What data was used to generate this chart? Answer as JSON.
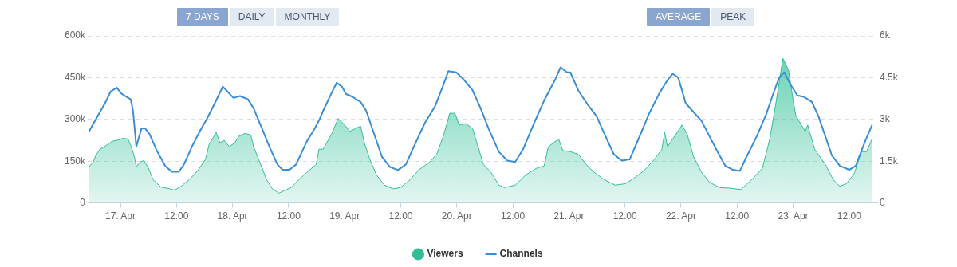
{
  "chart_data": {
    "type": "area",
    "annotations": [
      "7 DAYS",
      "DAILY",
      "MONTHLY",
      "AVERAGE",
      "PEAK"
    ],
    "legend": "bottom",
    "grid": "y",
    "marker": "none",
    "xlim": [
      "--04-16T17:00",
      "--04-23T18:00"
    ],
    "xticks": [
      {
        "value": "--04-17",
        "label": "17. Apr"
      },
      {
        "value": "--04-17T12:00",
        "label": "12:00"
      },
      {
        "value": "--04-18",
        "label": "18. Apr"
      },
      {
        "value": "--04-18T12:00",
        "label": "12:00"
      },
      {
        "value": "--04-19",
        "label": "19. Apr"
      },
      {
        "value": "--04-19T12:00",
        "label": "12:00"
      },
      {
        "value": "--04-20",
        "label": "20. Apr"
      },
      {
        "value": "--04-20T12:00",
        "label": "12:00"
      },
      {
        "value": "--04-21",
        "label": "21. Apr"
      },
      {
        "value": "--04-21T12:00",
        "label": "12:00"
      },
      {
        "value": "--04-22",
        "label": "22. Apr"
      },
      {
        "value": "--04-22T12:00",
        "label": "12:00"
      },
      {
        "value": "--04-23",
        "label": "23. Apr"
      },
      {
        "value": "--04-23T12:00",
        "label": "12:00"
      }
    ],
    "ylim": [
      0,
      600000
    ],
    "yticks": [
      0,
      {
        "value": 150000,
        "label": "150k"
      },
      {
        "value": 300000,
        "label": "300k"
      },
      {
        "value": 450000,
        "label": "450k"
      },
      {
        "value": 600000,
        "label": "600k"
      }
    ],
    "y2lim": [
      0,
      6000
    ],
    "y2ticks": [
      0,
      {
        "value": 1500,
        "label": "1.5k"
      },
      {
        "value": 3000,
        "label": "3k"
      },
      {
        "value": 4500,
        "label": "4.5k"
      },
      {
        "value": 6000,
        "label": "6k"
      }
    ],
    "series": [
      {
        "name": "Viewers",
        "color": "#2fbf97",
        "x": [
          "--04-16T17:18",
          "--04-16T18:12",
          "--04-16T18:42",
          "--04-16T19:36",
          "--04-16T21:00",
          "--04-16T22:12",
          "--04-16T23:18",
          "--04-17T00:30",
          "--04-17T01:36",
          "--04-17T02:12",
          "--04-17T03:00",
          "--04-17T03:24",
          "--04-17T04:12",
          "--04-17T05:00",
          "--04-17T05:54",
          "--04-17T07:00",
          "--04-17T08:42",
          "--04-17T10:30",
          "--04-17T11:36",
          "--04-17T13:00",
          "--04-17T14:42",
          "--04-17T16:30",
          "--04-17T18:12",
          "--04-17T19:00",
          "--04-17T20:30",
          "--04-17T21:18",
          "--04-17T22:12",
          "--04-17T23:18",
          "--04-18T00:30",
          "--04-18T01:18",
          "--04-18T02:42",
          "--04-18T03:54",
          "--04-18T04:30",
          "--04-18T05:36",
          "--04-18T07:18",
          "--04-18T08:30",
          "--04-18T09:54",
          "--04-18T11:18",
          "--04-18T12:30",
          "--04-18T14:12",
          "--04-18T15:54",
          "--04-18T17:54",
          "--04-18T18:30",
          "--04-18T19:24",
          "--04-18T21:12",
          "--04-18T21:42",
          "--04-18T22:36",
          "--04-19T00:00",
          "--04-19T01:06",
          "--04-19T02:18",
          "--04-19T03:24",
          "--04-19T04:18",
          "--04-19T05:24",
          "--04-19T06:48",
          "--04-19T08:30",
          "--04-19T10:18",
          "--04-19T11:54",
          "--04-19T13:42",
          "--04-19T15:54",
          "--04-19T18:12",
          "--04-19T19:42",
          "--04-19T21:06",
          "--04-19T22:30",
          "--04-19T23:36",
          "--04-20T00:30",
          "--04-20T01:54",
          "--04-20T03:24",
          "--04-20T04:12",
          "--04-20T05:42",
          "--04-20T07:18",
          "--04-20T09:00",
          "--04-20T10:12",
          "--04-20T12:30",
          "--04-20T14:48",
          "--04-20T17:00",
          "--04-20T18:42",
          "--04-20T19:36",
          "--04-20T20:42",
          "--04-20T21:48",
          "--04-20T22:42",
          "--04-21T00:18",
          "--04-21T02:00",
          "--04-21T03:42",
          "--04-21T05:24",
          "--04-21T07:36",
          "--04-21T09:54",
          "--04-21T12:06",
          "--04-21T13:48",
          "--04-21T16:00",
          "--04-21T18:18",
          "--04-21T19:54",
          "--04-21T20:30",
          "--04-21T21:06",
          "--04-21T22:48",
          "--04-22T00:12",
          "--04-22T01:18",
          "--04-22T02:42",
          "--04-22T04:24",
          "--04-22T06:06",
          "--04-22T08:18",
          "--04-22T10:36",
          "--04-22T12:48",
          "--04-22T15:06",
          "--04-22T17:24",
          "--04-22T19:00",
          "--04-22T20:24",
          "--04-22T21:48",
          "--04-22T23:00",
          "--04-23T00:06",
          "--04-23T00:36",
          "--04-23T02:36",
          "--04-23T03:06",
          "--04-23T04:36",
          "--04-23T06:54",
          "--04-23T08:36",
          "--04-23T10:00",
          "--04-23T11:24",
          "--04-23T13:06",
          "--04-23T14:36",
          "--04-23T15:42",
          "--04-23T16:54"
        ],
        "values": [
          130000,
          147000,
          170000,
          193000,
          207000,
          221000,
          225000,
          232000,
          230000,
          207000,
          165000,
          129000,
          147000,
          152000,
          129000,
          83000,
          57000,
          51000,
          46000,
          60000,
          83000,
          115000,
          156000,
          211000,
          253000,
          216000,
          225000,
          202000,
          216000,
          239000,
          250000,
          244000,
          202000,
          156000,
          83000,
          51000,
          35000,
          46000,
          55000,
          83000,
          110000,
          138000,
          193000,
          193000,
          248000,
          267000,
          303000,
          280000,
          257000,
          267000,
          276000,
          211000,
          156000,
          101000,
          64000,
          51000,
          55000,
          78000,
          119000,
          147000,
          175000,
          239000,
          322000,
          322000,
          280000,
          285000,
          267000,
          221000,
          138000,
          110000,
          64000,
          55000,
          64000,
          101000,
          124000,
          133000,
          202000,
          216000,
          230000,
          188000,
          184000,
          175000,
          138000,
          110000,
          83000,
          64000,
          69000,
          87000,
          115000,
          156000,
          193000,
          253000,
          202000,
          244000,
          280000,
          248000,
          165000,
          110000,
          74000,
          55000,
          53000,
          48000,
          83000,
          124000,
          230000,
          368000,
          519000,
          478000,
          358000,
          312000,
          257000,
          280000,
          193000,
          138000,
          83000,
          60000,
          69000,
          106000,
          184000,
          184000,
          230000
        ]
      },
      {
        "name": "Channels",
        "type": "line",
        "axis": "y2",
        "color": "#3a8ed8",
        "x": [
          "--04-16T17:18",
          "--04-16T19:00",
          "--04-16T20:42",
          "--04-16T21:54",
          "--04-16T23:12",
          "--04-17T00:12",
          "--04-17T01:00",
          "--04-17T02:12",
          "--04-17T02:42",
          "--04-17T03:24",
          "--04-17T04:30",
          "--04-17T05:18",
          "--04-17T06:12",
          "--04-17T07:54",
          "--04-17T09:36",
          "--04-17T11:00",
          "--04-17T12:30",
          "--04-17T13:36",
          "--04-17T15:18",
          "--04-17T17:00",
          "--04-17T18:42",
          "--04-17T20:30",
          "--04-17T21:54",
          "--04-17T22:42",
          "--04-18T00:12",
          "--04-18T01:36",
          "--04-18T03:18",
          "--04-18T04:30",
          "--04-18T06:12",
          "--04-18T07:54",
          "--04-18T09:36",
          "--04-18T10:42",
          "--04-18T12:12",
          "--04-18T13:36",
          "--04-18T15:54",
          "--04-18T17:36",
          "--04-18T18:42",
          "--04-18T19:24",
          "--04-18T21:12",
          "--04-18T22:18",
          "--04-18T23:24",
          "--04-19T00:18",
          "--04-19T01:42",
          "--04-19T03:24",
          "--04-19T04:36",
          "--04-19T06:18",
          "--04-19T08:00",
          "--04-19T09:42",
          "--04-19T11:24",
          "--04-19T13:06",
          "--04-19T14:48",
          "--04-19T17:06",
          "--04-19T19:24",
          "--04-19T21:06",
          "--04-19T22:12",
          "--04-19T23:54",
          "--04-20T01:36",
          "--04-20T03:24",
          "--04-20T05:06",
          "--04-20T06:48",
          "--04-20T09:00",
          "--04-20T10:48",
          "--04-20T12:30",
          "--04-20T14:12",
          "--04-20T16:30",
          "--04-20T18:42",
          "--04-20T21:00",
          "--04-20T22:12",
          "--04-20T23:36",
          "--04-21T00:18",
          "--04-21T02:00",
          "--04-21T04:12",
          "--04-21T05:54",
          "--04-21T07:36",
          "--04-21T09:36",
          "--04-21T11:18",
          "--04-21T13:00",
          "--04-21T14:54",
          "--04-21T17:12",
          "--04-21T19:24",
          "--04-21T21:06",
          "--04-21T22:12",
          "--04-21T23:24",
          "--04-22T01:00",
          "--04-22T02:42",
          "--04-22T04:24",
          "--04-22T06:06",
          "--04-22T07:48",
          "--04-22T09:30",
          "--04-22T11:06",
          "--04-22T12:36",
          "--04-22T14:00",
          "--04-22T16:12",
          "--04-22T18:12",
          "--04-22T19:36",
          "--04-22T21:00",
          "--04-22T22:06",
          "--04-22T23:30",
          "--04-23T00:54",
          "--04-23T02:18",
          "--04-23T04:00",
          "--04-23T05:24",
          "--04-23T06:54",
          "--04-23T08:18",
          "--04-23T10:00",
          "--04-23T12:00",
          "--04-23T13:24",
          "--04-23T15:24",
          "--04-23T16:54"
        ],
        "values": [
          2570,
          3080,
          3580,
          4000,
          4140,
          3930,
          3840,
          3720,
          3300,
          2020,
          2670,
          2670,
          2480,
          1840,
          1330,
          1120,
          1120,
          1380,
          2020,
          2570,
          3080,
          3680,
          4180,
          4040,
          3770,
          3840,
          3720,
          3400,
          2710,
          2020,
          1380,
          1190,
          1190,
          1380,
          2210,
          2670,
          3030,
          3310,
          3950,
          4320,
          4180,
          3910,
          3810,
          3630,
          3310,
          2480,
          1650,
          1290,
          1180,
          1380,
          2020,
          2850,
          3490,
          4230,
          4730,
          4690,
          4410,
          4040,
          3400,
          2670,
          1840,
          1520,
          1470,
          1930,
          2850,
          3680,
          4410,
          4870,
          4690,
          4690,
          4040,
          3490,
          3120,
          2480,
          1750,
          1520,
          1560,
          2300,
          3220,
          3950,
          4410,
          4640,
          4500,
          3580,
          3260,
          2940,
          2390,
          1840,
          1330,
          1190,
          1150,
          1650,
          2390,
          3170,
          3860,
          4500,
          4690,
          4230,
          3860,
          3810,
          3630,
          3120,
          2390,
          1700,
          1330,
          1190,
          1330,
          2210,
          2800
        ]
      }
    ]
  }
}
